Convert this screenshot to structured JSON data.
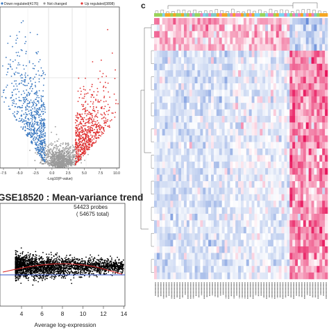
{
  "panel_labels": {
    "c": "c"
  },
  "volcano": {
    "legend": [
      {
        "label": "Down regulated(4176)",
        "color": "#3a78c0"
      },
      {
        "label": "Not changed",
        "color": "#9a9a9a"
      },
      {
        "label": "Up regulated(3898)",
        "color": "#e03030"
      }
    ],
    "xlabel": "-Log10(P-value)",
    "xticks": [
      "-7.5",
      "-5.0",
      "-2.5",
      "0.0",
      "2.5",
      "5.0",
      "7.5",
      "10.0"
    ]
  },
  "ma_plot": {
    "title": "GSE18520 : Mean-variance trend",
    "annotation_line1": "54423 probes",
    "annotation_line2": "( 54675 total)",
    "xlabel": "Average log-expression",
    "xticks": [
      "4",
      "6",
      "8",
      "10",
      "12",
      "14"
    ]
  },
  "heatmap": {
    "low_color": "#5d84d6",
    "mid_color": "#ffffff",
    "high_color": "#e8175d"
  },
  "colors": {
    "down": "#3a78c0",
    "up": "#e03030",
    "neutral": "#9a9a9a",
    "ma_points": "#000000",
    "trend_red": "#d62a2a",
    "trend_blue": "#3050c8"
  }
}
